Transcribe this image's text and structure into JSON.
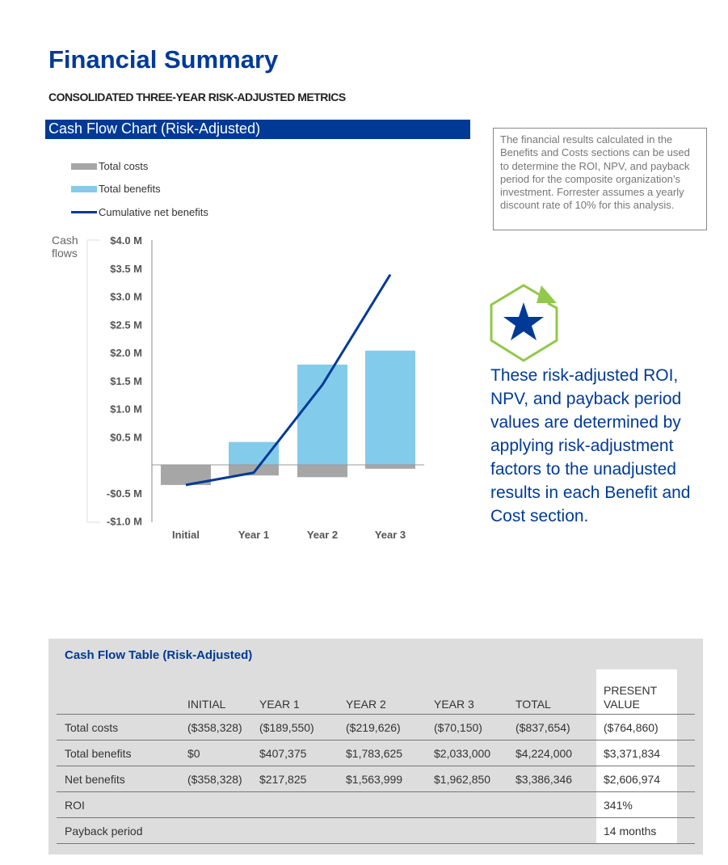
{
  "page": {
    "title": "Financial Summary",
    "subtitle": "CONSOLIDATED THREE-YEAR RISK-ADJUSTED METRICS"
  },
  "chart_section": {
    "header": "Cash Flow Chart (Risk-Adjusted)"
  },
  "note": "The financial results calculated in the Benefits and Costs sections can be used to determine the ROI, NPV, and payback period for the composite organization’s investment. Forrester assumes a yearly discount rate of 10% for this analysis.",
  "callout": {
    "icon": "star-hexagon-icon",
    "text": "These risk-adjusted ROI, NPV, and payback period values are determined by applying risk-adjustment factors to the unadjusted results in each Benefit and Cost section."
  },
  "chart_data": {
    "type": "bar",
    "ylabel": "Cash flows",
    "categories": [
      "Initial",
      "Year 1",
      "Year 2",
      "Year 3"
    ],
    "ylim": [
      -1.0,
      4.0
    ],
    "yticks": [
      {
        "v": 4.0,
        "label": "$4.0 M"
      },
      {
        "v": 3.5,
        "label": "$3.5 M"
      },
      {
        "v": 3.0,
        "label": "$3.0 M"
      },
      {
        "v": 2.5,
        "label": "$2.5 M"
      },
      {
        "v": 2.0,
        "label": "$2.0 M"
      },
      {
        "v": 1.5,
        "label": "$1.5 M"
      },
      {
        "v": 1.0,
        "label": "$1.0 M"
      },
      {
        "v": 0.5,
        "label": "$0.5 M"
      },
      {
        "v": -0.5,
        "label": "-$0.5 M"
      },
      {
        "v": -1.0,
        "label": "-$1.0 M"
      }
    ],
    "legend_placement": "top-left",
    "series": [
      {
        "name": "Total costs",
        "kind": "bar",
        "color": "#a6a6a6",
        "values": [
          -0.358328,
          -0.18955,
          -0.219626,
          -0.07015
        ]
      },
      {
        "name": "Total benefits",
        "kind": "bar",
        "color": "#83cbeb",
        "values": [
          0,
          0.407375,
          1.783625,
          2.033
        ]
      },
      {
        "name": "Cumulative net benefits",
        "kind": "line",
        "color": "#003a96",
        "values": [
          -0.358328,
          -0.140503,
          1.423496,
          3.386346
        ]
      }
    ]
  },
  "table": {
    "title": "Cash Flow Table (Risk-Adjusted)",
    "columns": [
      "",
      "INITIAL",
      "YEAR 1",
      "YEAR 2",
      "YEAR 3",
      "TOTAL",
      "PRESENT VALUE"
    ],
    "rows": [
      [
        "Total costs",
        "($358,328)",
        "($189,550)",
        "($219,626)",
        "($70,150)",
        "($837,654)",
        "($764,860)"
      ],
      [
        "Total benefits",
        "$0",
        "$407,375",
        "$1,783,625",
        "$2,033,000",
        "$4,224,000",
        "$3,371,834"
      ],
      [
        "Net benefits",
        "($358,328)",
        "$217,825",
        "$1,563,999",
        "$1,962,850",
        "$3,386,346",
        "$2,606,974"
      ],
      [
        "ROI",
        "",
        "",
        "",
        "",
        "",
        "341%"
      ],
      [
        "Payback period",
        "",
        "",
        "",
        "",
        "",
        "14 months"
      ]
    ]
  }
}
